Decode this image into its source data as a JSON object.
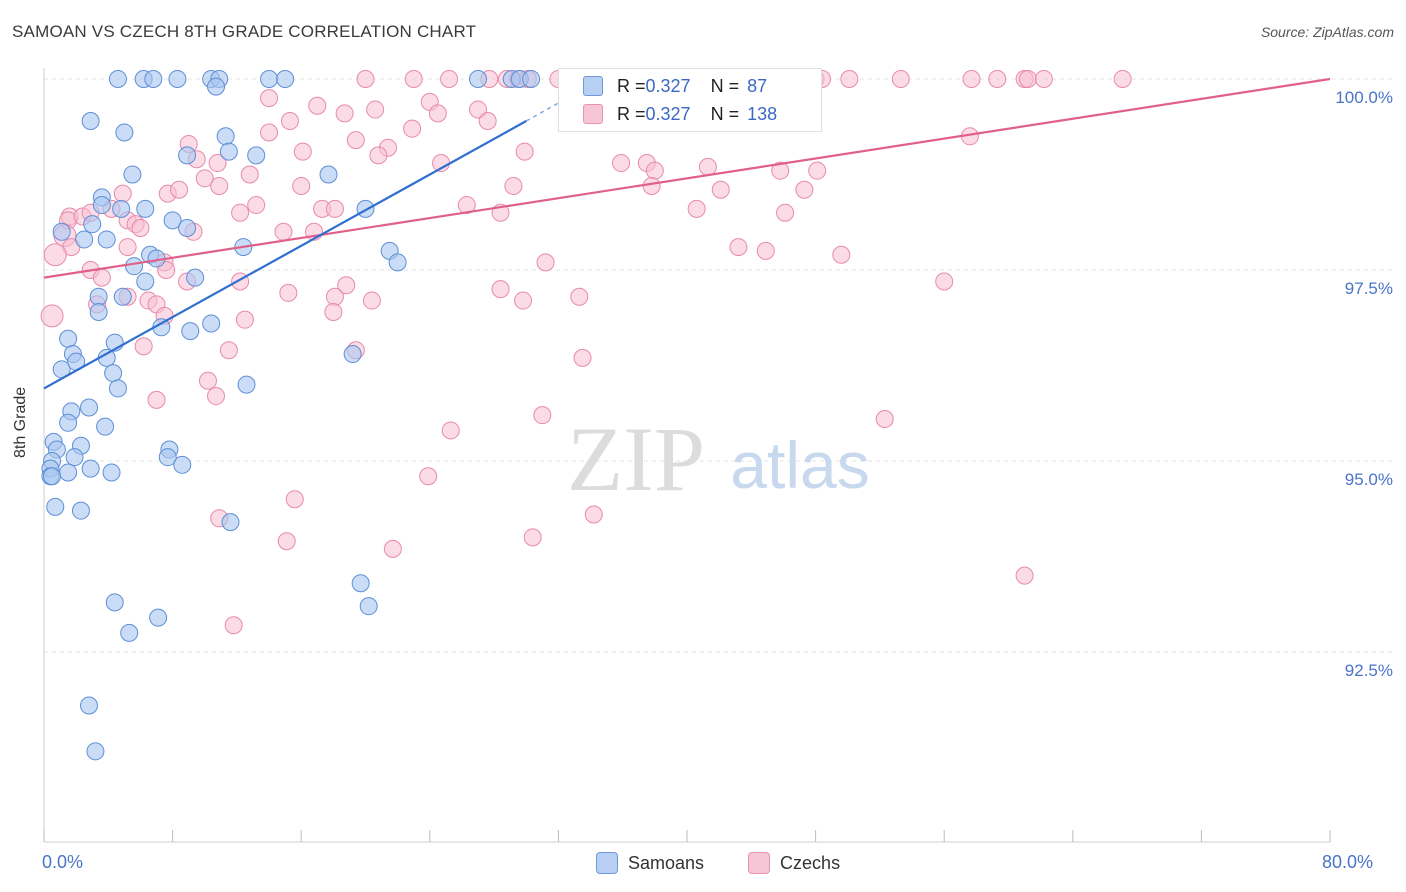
{
  "title": "SAMOAN VS CZECH 8TH GRADE CORRELATION CHART",
  "source": "Source: ZipAtlas.com",
  "watermark": {
    "zip": "ZIP",
    "atlas": "atlas"
  },
  "legend_top": {
    "rows": [
      {
        "r_label": "R = ",
        "r_value": "0.327",
        "n_label": "N = ",
        "n_value": "87"
      },
      {
        "r_label": "R = ",
        "r_value": "0.327",
        "n_label": "N = ",
        "n_value": "138"
      }
    ]
  },
  "legend_bottom": {
    "samoans": "Samoans",
    "czechs": "Czechs"
  },
  "colors": {
    "samoans_fill": "#a9c6f0",
    "samoans_stroke": "#5d8fd6",
    "samoans_line": "#2f6fd0",
    "czechs_fill": "#f7c0d2",
    "czechs_stroke": "#e88aaa",
    "czechs_line": "#e0608a",
    "tick_label": "#4a74c9",
    "grid": "#e3e3e3"
  },
  "chart_data": {
    "type": "scatter",
    "title": "SAMOAN VS CZECH 8TH GRADE CORRELATION CHART",
    "xlabel": "",
    "ylabel": "8th Grade",
    "xlim": [
      0,
      80
    ],
    "ylim": [
      90.2,
      100.4
    ],
    "x_tick_labels": [
      "0.0%",
      "80.0%"
    ],
    "y_ticks": [
      {
        "value": 92.5,
        "label": "92.5%"
      },
      {
        "value": 95.0,
        "label": "95.0%"
      },
      {
        "value": 97.5,
        "label": "97.5%"
      },
      {
        "value": 100.0,
        "label": "100.0%"
      }
    ],
    "grid": true,
    "legend_position": "top-center",
    "series": [
      {
        "name": "Samoans",
        "r": 0.327,
        "n": 87,
        "trend": {
          "x": [
            0,
            30.0
          ],
          "y": [
            95.95,
            99.45
          ],
          "dash_x": [
            30.0,
            32.8
          ],
          "dash_y": [
            99.45,
            99.78
          ]
        },
        "points": [
          [
            4.6,
            100.0
          ],
          [
            6.2,
            100.0
          ],
          [
            6.8,
            100.0
          ],
          [
            8.3,
            100.0
          ],
          [
            10.4,
            100.0
          ],
          [
            10.9,
            100.0
          ],
          [
            14.0,
            100.0
          ],
          [
            15.0,
            100.0
          ],
          [
            27.0,
            100.0
          ],
          [
            10.7,
            99.9
          ],
          [
            2.9,
            99.45
          ],
          [
            5.0,
            99.3
          ],
          [
            11.3,
            99.25
          ],
          [
            8.9,
            99.0
          ],
          [
            11.5,
            99.05
          ],
          [
            13.2,
            99.0
          ],
          [
            5.5,
            98.75
          ],
          [
            17.7,
            98.75
          ],
          [
            3.6,
            98.45
          ],
          [
            3.6,
            98.35
          ],
          [
            4.8,
            98.3
          ],
          [
            6.3,
            98.3
          ],
          [
            20.0,
            98.3
          ],
          [
            8.0,
            98.15
          ],
          [
            1.1,
            98.0
          ],
          [
            3.0,
            98.1
          ],
          [
            8.9,
            98.05
          ],
          [
            2.5,
            97.9
          ],
          [
            3.9,
            97.9
          ],
          [
            12.4,
            97.8
          ],
          [
            6.6,
            97.7
          ],
          [
            7.0,
            97.65
          ],
          [
            21.5,
            97.75
          ],
          [
            22.0,
            97.6
          ],
          [
            5.6,
            97.55
          ],
          [
            6.3,
            97.35
          ],
          [
            9.4,
            97.4
          ],
          [
            3.4,
            97.15
          ],
          [
            4.9,
            97.15
          ],
          [
            3.4,
            96.95
          ],
          [
            10.4,
            96.8
          ],
          [
            7.3,
            96.75
          ],
          [
            9.1,
            96.7
          ],
          [
            4.4,
            96.55
          ],
          [
            1.5,
            96.6
          ],
          [
            1.8,
            96.4
          ],
          [
            3.9,
            96.35
          ],
          [
            1.1,
            96.2
          ],
          [
            2.0,
            96.3
          ],
          [
            4.3,
            96.15
          ],
          [
            19.2,
            96.4
          ],
          [
            12.6,
            96.0
          ],
          [
            4.6,
            95.95
          ],
          [
            1.7,
            95.65
          ],
          [
            2.8,
            95.7
          ],
          [
            1.5,
            95.5
          ],
          [
            3.8,
            95.45
          ],
          [
            0.6,
            95.25
          ],
          [
            2.3,
            95.2
          ],
          [
            0.8,
            95.15
          ],
          [
            7.8,
            95.15
          ],
          [
            7.7,
            95.05
          ],
          [
            1.9,
            95.05
          ],
          [
            0.5,
            95.0
          ],
          [
            0.4,
            94.9
          ],
          [
            1.5,
            94.85
          ],
          [
            2.9,
            94.9
          ],
          [
            4.2,
            94.85
          ],
          [
            8.6,
            94.95
          ],
          [
            0.4,
            94.8
          ],
          [
            0.5,
            94.8
          ],
          [
            0.7,
            94.4
          ],
          [
            2.3,
            94.35
          ],
          [
            11.6,
            94.2
          ],
          [
            19.7,
            93.4
          ],
          [
            4.4,
            93.15
          ],
          [
            20.2,
            93.1
          ],
          [
            7.1,
            92.95
          ],
          [
            5.3,
            92.75
          ],
          [
            2.8,
            91.8
          ],
          [
            3.2,
            91.2
          ],
          [
            29.1,
            100.0
          ],
          [
            29.6,
            100.0
          ],
          [
            30.3,
            100.0
          ]
        ]
      },
      {
        "name": "Czechs",
        "r": 0.327,
        "n": 138,
        "trend": {
          "x": [
            0,
            80
          ],
          "y": [
            97.4,
            100.0
          ]
        },
        "points": [
          [
            20.0,
            100.0
          ],
          [
            23.0,
            100.0
          ],
          [
            25.2,
            100.0
          ],
          [
            27.7,
            100.0
          ],
          [
            28.8,
            100.0
          ],
          [
            29.5,
            100.0
          ],
          [
            30.1,
            100.0
          ],
          [
            32.0,
            100.0
          ],
          [
            33.0,
            100.0
          ],
          [
            34.0,
            100.0
          ],
          [
            34.8,
            100.0
          ],
          [
            36.0,
            100.0
          ],
          [
            37.0,
            100.0
          ],
          [
            38.3,
            100.0
          ],
          [
            40.3,
            100.0
          ],
          [
            41.0,
            100.0
          ],
          [
            41.3,
            100.0
          ],
          [
            43.3,
            100.0
          ],
          [
            44.0,
            100.0
          ],
          [
            45.7,
            100.0
          ],
          [
            47.2,
            100.0
          ],
          [
            48.0,
            100.0
          ],
          [
            48.4,
            100.0
          ],
          [
            50.1,
            100.0
          ],
          [
            53.3,
            100.0
          ],
          [
            57.7,
            100.0
          ],
          [
            59.3,
            100.0
          ],
          [
            61.0,
            100.0
          ],
          [
            61.2,
            100.0
          ],
          [
            62.2,
            100.0
          ],
          [
            67.1,
            100.0
          ],
          [
            14.0,
            99.75
          ],
          [
            17.0,
            99.65
          ],
          [
            24.0,
            99.7
          ],
          [
            27.0,
            99.6
          ],
          [
            18.7,
            99.55
          ],
          [
            20.6,
            99.6
          ],
          [
            24.5,
            99.55
          ],
          [
            15.3,
            99.45
          ],
          [
            27.6,
            99.45
          ],
          [
            33.1,
            99.45
          ],
          [
            14.0,
            99.3
          ],
          [
            22.9,
            99.35
          ],
          [
            9.0,
            99.15
          ],
          [
            19.4,
            99.2
          ],
          [
            21.4,
            99.1
          ],
          [
            9.5,
            98.95
          ],
          [
            16.1,
            99.05
          ],
          [
            20.8,
            99.0
          ],
          [
            29.9,
            99.05
          ],
          [
            24.7,
            98.9
          ],
          [
            10.8,
            98.9
          ],
          [
            35.9,
            98.9
          ],
          [
            37.5,
            98.9
          ],
          [
            38.0,
            98.8
          ],
          [
            41.3,
            98.85
          ],
          [
            45.8,
            98.8
          ],
          [
            48.1,
            98.8
          ],
          [
            57.6,
            99.25
          ],
          [
            10.0,
            98.7
          ],
          [
            12.8,
            98.75
          ],
          [
            10.9,
            98.6
          ],
          [
            16.0,
            98.6
          ],
          [
            29.2,
            98.6
          ],
          [
            37.8,
            98.6
          ],
          [
            42.1,
            98.55
          ],
          [
            47.3,
            98.55
          ],
          [
            7.7,
            98.5
          ],
          [
            8.4,
            98.55
          ],
          [
            4.9,
            98.5
          ],
          [
            13.2,
            98.35
          ],
          [
            17.3,
            98.3
          ],
          [
            18.1,
            98.3
          ],
          [
            26.3,
            98.35
          ],
          [
            40.6,
            98.3
          ],
          [
            12.2,
            98.25
          ],
          [
            28.4,
            98.25
          ],
          [
            46.1,
            98.25
          ],
          [
            4.2,
            98.3
          ],
          [
            1.6,
            98.2
          ],
          [
            1.5,
            98.15
          ],
          [
            2.4,
            98.2
          ],
          [
            2.9,
            98.25
          ],
          [
            5.2,
            98.15
          ],
          [
            5.7,
            98.1
          ],
          [
            6.0,
            98.05
          ],
          [
            9.3,
            98.0
          ],
          [
            14.9,
            98.0
          ],
          [
            16.8,
            98.0
          ],
          [
            1.3,
            97.95
          ],
          [
            1.7,
            97.8
          ],
          [
            0.7,
            97.7
          ],
          [
            5.2,
            97.8
          ],
          [
            7.5,
            97.6
          ],
          [
            31.2,
            97.6
          ],
          [
            43.2,
            97.8
          ],
          [
            44.9,
            97.75
          ],
          [
            49.6,
            97.7
          ],
          [
            2.9,
            97.5
          ],
          [
            3.6,
            97.4
          ],
          [
            7.6,
            97.5
          ],
          [
            8.9,
            97.35
          ],
          [
            12.2,
            97.35
          ],
          [
            18.8,
            97.3
          ],
          [
            28.4,
            97.25
          ],
          [
            15.2,
            97.2
          ],
          [
            18.1,
            97.15
          ],
          [
            20.4,
            97.1
          ],
          [
            29.8,
            97.1
          ],
          [
            33.3,
            97.15
          ],
          [
            56.0,
            97.35
          ],
          [
            5.2,
            97.15
          ],
          [
            3.3,
            97.05
          ],
          [
            6.5,
            97.1
          ],
          [
            7.0,
            97.05
          ],
          [
            18.0,
            96.95
          ],
          [
            7.5,
            96.9
          ],
          [
            12.5,
            96.85
          ],
          [
            0.5,
            96.9
          ],
          [
            6.2,
            96.5
          ],
          [
            11.5,
            96.45
          ],
          [
            19.4,
            96.45
          ],
          [
            33.5,
            96.35
          ],
          [
            10.2,
            96.05
          ],
          [
            10.7,
            95.85
          ],
          [
            7.0,
            95.8
          ],
          [
            31.0,
            95.6
          ],
          [
            52.3,
            95.55
          ],
          [
            25.3,
            95.4
          ],
          [
            23.9,
            94.8
          ],
          [
            15.6,
            94.5
          ],
          [
            34.2,
            94.3
          ],
          [
            10.9,
            94.25
          ],
          [
            15.1,
            93.95
          ],
          [
            30.4,
            94.0
          ],
          [
            21.7,
            93.85
          ],
          [
            61.0,
            93.5
          ],
          [
            11.8,
            92.85
          ]
        ]
      }
    ]
  }
}
